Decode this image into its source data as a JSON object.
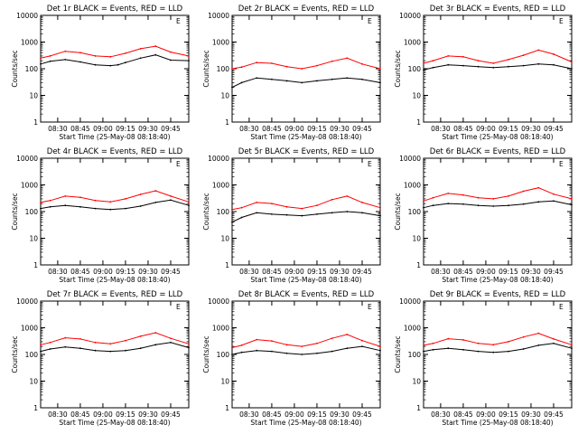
{
  "figure": {
    "ylabel": "Counts/sec",
    "xlabel": "Start Time (25-May-08 08:18:40)",
    "yticks": [
      "1",
      "10",
      "100",
      "1000",
      "10000"
    ],
    "xticks": [
      "08:30",
      "08:45",
      "09:00",
      "09:15",
      "09:30",
      "09:45"
    ],
    "series_colors": {
      "events": "#000000",
      "lld": "#ff0000"
    }
  },
  "chart_data": [
    {
      "type": "line",
      "title": "Det 1r BLACK = Events, RED = LLD",
      "xlim": [
        "08:18:40",
        "09:57"
      ],
      "ylim": [
        1,
        10000
      ],
      "yscale": "log",
      "mark": "E",
      "series": [
        {
          "key": "lld",
          "x": [
            "08:18:40",
            "08:25",
            "08:35",
            "08:45",
            "08:55",
            "09:05",
            "09:15",
            "09:25",
            "09:35",
            "09:45",
            "09:57"
          ],
          "values": [
            250,
            300,
            450,
            400,
            300,
            280,
            380,
            560,
            700,
            420,
            300
          ]
        },
        {
          "key": "events",
          "x": [
            "08:18:40",
            "08:25",
            "08:35",
            "08:45",
            "08:55",
            "09:05",
            "09:10",
            "09:15",
            "09:25",
            "09:35",
            "09:45",
            "09:57"
          ],
          "values": [
            150,
            190,
            220,
            180,
            140,
            130,
            140,
            170,
            250,
            330,
            210,
            200
          ]
        }
      ]
    },
    {
      "type": "line",
      "title": "Det 2r BLACK = Events, RED = LLD",
      "xlim": [
        "08:18:40",
        "09:57"
      ],
      "ylim": [
        1,
        10000
      ],
      "yscale": "log",
      "mark": "E",
      "series": [
        {
          "key": "lld",
          "x": [
            "08:18:40",
            "08:25",
            "08:35",
            "08:45",
            "08:55",
            "09:05",
            "09:15",
            "09:25",
            "09:35",
            "09:45",
            "09:57"
          ],
          "values": [
            100,
            115,
            170,
            160,
            120,
            100,
            130,
            190,
            250,
            150,
            100
          ]
        },
        {
          "key": "events",
          "x": [
            "08:18:40",
            "08:25",
            "08:35",
            "08:45",
            "08:55",
            "09:05",
            "09:15",
            "09:25",
            "09:35",
            "09:45",
            "09:57"
          ],
          "values": [
            20,
            30,
            45,
            40,
            35,
            30,
            35,
            40,
            45,
            40,
            30
          ]
        }
      ]
    },
    {
      "type": "line",
      "title": "Det 3r BLACK = Events, RED = LLD",
      "xlim": [
        "08:18:40",
        "09:57"
      ],
      "ylim": [
        1,
        10000
      ],
      "yscale": "log",
      "mark": "E",
      "series": [
        {
          "key": "lld",
          "x": [
            "08:18:40",
            "08:25",
            "08:35",
            "08:45",
            "08:55",
            "09:05",
            "09:15",
            "09:25",
            "09:35",
            "09:45",
            "09:57"
          ],
          "values": [
            160,
            200,
            300,
            280,
            200,
            160,
            220,
            320,
            500,
            350,
            180
          ]
        },
        {
          "key": "events",
          "x": [
            "08:18:40",
            "08:25",
            "08:35",
            "08:45",
            "08:55",
            "09:05",
            "09:15",
            "09:25",
            "09:35",
            "09:45",
            "09:57"
          ],
          "values": [
            90,
            110,
            140,
            130,
            120,
            110,
            120,
            130,
            150,
            140,
            100
          ]
        }
      ]
    },
    {
      "type": "line",
      "title": "Det 4r BLACK = Events, RED = LLD",
      "xlim": [
        "08:18:40",
        "09:57"
      ],
      "ylim": [
        1,
        10000
      ],
      "yscale": "log",
      "mark": "E",
      "series": [
        {
          "key": "lld",
          "x": [
            "08:18:40",
            "08:25",
            "08:35",
            "08:45",
            "08:55",
            "09:05",
            "09:15",
            "09:25",
            "09:35",
            "09:45",
            "09:57"
          ],
          "values": [
            220,
            260,
            380,
            340,
            260,
            230,
            300,
            440,
            600,
            380,
            230
          ]
        },
        {
          "key": "events",
          "x": [
            "08:18:40",
            "08:25",
            "08:35",
            "08:45",
            "08:55",
            "09:05",
            "09:15",
            "09:25",
            "09:35",
            "09:45",
            "09:57"
          ],
          "values": [
            130,
            150,
            170,
            150,
            130,
            120,
            130,
            160,
            220,
            270,
            170
          ]
        }
      ]
    },
    {
      "type": "line",
      "title": "Det 5r BLACK = Events, RED = LLD",
      "xlim": [
        "08:18:40",
        "09:57"
      ],
      "ylim": [
        1,
        10000
      ],
      "yscale": "log",
      "mark": "E",
      "series": [
        {
          "key": "lld",
          "x": [
            "08:18:40",
            "08:25",
            "08:35",
            "08:45",
            "08:55",
            "09:05",
            "09:15",
            "09:25",
            "09:35",
            "09:45",
            "09:57"
          ],
          "values": [
            120,
            140,
            220,
            200,
            150,
            130,
            170,
            280,
            380,
            220,
            140
          ]
        },
        {
          "key": "events",
          "x": [
            "08:18:40",
            "08:25",
            "08:35",
            "08:45",
            "08:55",
            "09:05",
            "09:15",
            "09:25",
            "09:35",
            "09:45",
            "09:57"
          ],
          "values": [
            40,
            60,
            90,
            80,
            75,
            70,
            80,
            90,
            100,
            90,
            70
          ]
        }
      ]
    },
    {
      "type": "line",
      "title": "Det 6r BLACK = Events, RED = LLD",
      "xlim": [
        "08:18:40",
        "09:57"
      ],
      "ylim": [
        1,
        10000
      ],
      "yscale": "log",
      "mark": "E",
      "series": [
        {
          "key": "lld",
          "x": [
            "08:18:40",
            "08:25",
            "08:35",
            "08:45",
            "08:55",
            "09:05",
            "09:15",
            "09:25",
            "09:35",
            "09:45",
            "09:57"
          ],
          "values": [
            250,
            330,
            480,
            420,
            330,
            300,
            380,
            580,
            780,
            450,
            300
          ]
        },
        {
          "key": "events",
          "x": [
            "08:18:40",
            "08:25",
            "08:35",
            "08:45",
            "08:55",
            "09:05",
            "09:15",
            "09:25",
            "09:35",
            "09:45",
            "09:57"
          ],
          "values": [
            140,
            170,
            200,
            190,
            170,
            160,
            170,
            190,
            230,
            250,
            180
          ]
        }
      ]
    },
    {
      "type": "line",
      "title": "Det 7r BLACK = Events, RED = LLD",
      "xlim": [
        "08:18:40",
        "09:57"
      ],
      "ylim": [
        1,
        10000
      ],
      "yscale": "log",
      "mark": "E",
      "series": [
        {
          "key": "lld",
          "x": [
            "08:18:40",
            "08:25",
            "08:35",
            "08:45",
            "08:55",
            "09:05",
            "09:15",
            "09:25",
            "09:35",
            "09:45",
            "09:57"
          ],
          "values": [
            230,
            280,
            420,
            380,
            280,
            250,
            330,
            480,
            650,
            400,
            250
          ]
        },
        {
          "key": "events",
          "x": [
            "08:18:40",
            "08:25",
            "08:35",
            "08:45",
            "08:55",
            "09:05",
            "09:15",
            "09:25",
            "09:35",
            "09:45",
            "09:57"
          ],
          "values": [
            130,
            160,
            190,
            170,
            140,
            130,
            140,
            170,
            230,
            280,
            180
          ]
        }
      ]
    },
    {
      "type": "line",
      "title": "Det 8r BLACK = Events, RED = LLD",
      "xlim": [
        "08:18:40",
        "09:57"
      ],
      "ylim": [
        1,
        10000
      ],
      "yscale": "log",
      "mark": "E",
      "series": [
        {
          "key": "lld",
          "x": [
            "08:18:40",
            "08:25",
            "08:35",
            "08:45",
            "08:55",
            "09:05",
            "09:15",
            "09:25",
            "09:35",
            "09:45",
            "09:57"
          ],
          "values": [
            180,
            220,
            360,
            320,
            230,
            200,
            260,
            400,
            560,
            330,
            200
          ]
        },
        {
          "key": "events",
          "x": [
            "08:18:40",
            "08:25",
            "08:35",
            "08:45",
            "08:55",
            "09:05",
            "09:15",
            "09:25",
            "09:35",
            "09:45",
            "09:57"
          ],
          "values": [
            100,
            120,
            140,
            130,
            110,
            100,
            110,
            130,
            170,
            200,
            140
          ]
        }
      ]
    },
    {
      "type": "line",
      "title": "Det 9r BLACK = Events, RED = LLD",
      "xlim": [
        "08:18:40",
        "09:57"
      ],
      "ylim": [
        1,
        10000
      ],
      "yscale": "log",
      "mark": "E",
      "series": [
        {
          "key": "lld",
          "x": [
            "08:18:40",
            "08:25",
            "08:35",
            "08:45",
            "08:55",
            "09:05",
            "09:15",
            "09:25",
            "09:35",
            "09:45",
            "09:57"
          ],
          "values": [
            220,
            260,
            390,
            350,
            260,
            230,
            300,
            450,
            620,
            380,
            230
          ]
        },
        {
          "key": "events",
          "x": [
            "08:18:40",
            "08:25",
            "08:35",
            "08:45",
            "08:55",
            "09:05",
            "09:15",
            "09:25",
            "09:35",
            "09:45",
            "09:57"
          ],
          "values": [
            130,
            150,
            170,
            150,
            130,
            120,
            130,
            160,
            220,
            260,
            170
          ]
        }
      ]
    }
  ]
}
